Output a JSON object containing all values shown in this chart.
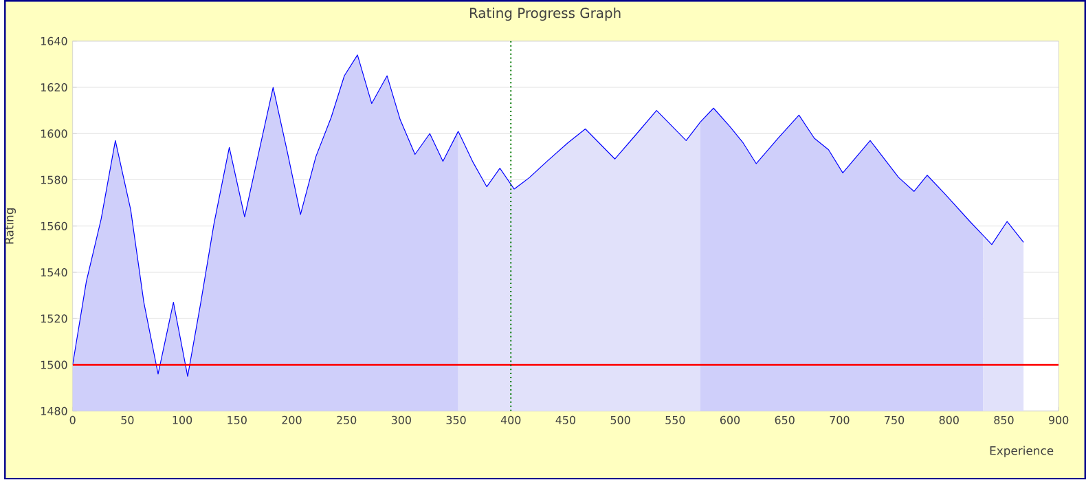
{
  "chart_data": {
    "type": "area",
    "title": "Rating Progress Graph",
    "xlabel": "Experience",
    "ylabel": "Rating",
    "series": [
      {
        "color": "#cfcffa",
        "x": [
          0,
          12.5,
          26,
          39,
          53,
          65,
          78,
          92,
          105,
          117,
          129,
          143,
          157,
          170,
          183,
          196,
          208,
          222,
          236,
          248,
          260,
          273,
          287,
          299,
          312.5,
          326,
          338,
          352
        ],
        "values": [
          1500,
          1536,
          1563,
          1597,
          1567,
          1527,
          1496,
          1527,
          1495,
          1527,
          1561,
          1594,
          1564,
          1592,
          1620,
          1592,
          1565,
          1590,
          1607,
          1625,
          1634,
          1613,
          1625,
          1606,
          1591,
          1600,
          1588,
          1601
        ]
      },
      {
        "color": "#e1e1fa",
        "x": [
          352,
          365,
          378,
          390,
          403,
          417,
          433,
          452,
          468,
          495,
          515,
          533,
          560,
          573
        ],
        "values": [
          1601,
          1588,
          1577,
          1585,
          1576,
          1581,
          1588,
          1596,
          1602,
          1589,
          1600,
          1610,
          1597,
          1605
        ]
      },
      {
        "color": "#cfcffa",
        "x": [
          573,
          585,
          600,
          612,
          624,
          644,
          663,
          677,
          690,
          703,
          728,
          754,
          768,
          780,
          796,
          819,
          831
        ],
        "values": [
          1605,
          1611,
          1603,
          1596,
          1587,
          1598,
          1608,
          1598,
          1593,
          1583,
          1597,
          1581,
          1575,
          1582,
          1574,
          1562,
          1556
        ]
      },
      {
        "color": "#e1e1fa",
        "x": [
          831,
          839,
          853,
          868
        ],
        "values": [
          1556,
          1552,
          1562,
          1553
        ]
      }
    ],
    "xlim": [
      0,
      900
    ],
    "xticks": [
      0,
      50,
      100,
      150,
      200,
      250,
      300,
      350,
      400,
      450,
      500,
      550,
      600,
      650,
      700,
      750,
      800,
      850,
      900
    ],
    "ylim": [
      1480,
      1640
    ],
    "yticks": [
      1480,
      1500,
      1520,
      1540,
      1560,
      1580,
      1600,
      1620,
      1640
    ],
    "grid": "y",
    "ref_lines": [
      {
        "axis": "y",
        "value": 1500,
        "color": "#ff0000",
        "line_style": "solid"
      },
      {
        "axis": "x",
        "value": 400,
        "color": "#007700",
        "line_style": "dotted"
      }
    ]
  }
}
